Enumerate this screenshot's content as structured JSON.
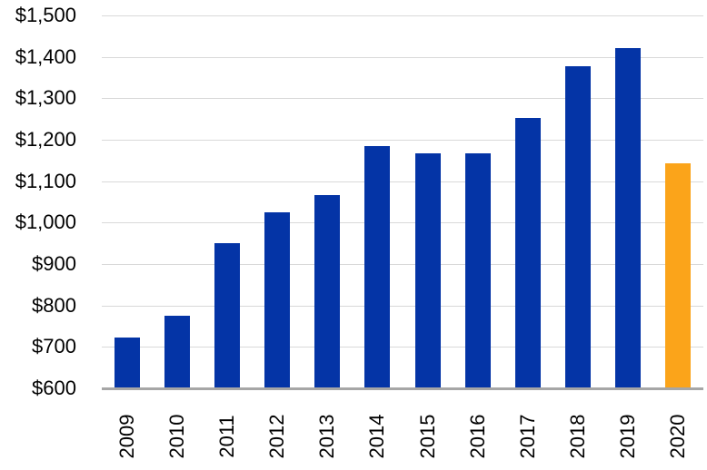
{
  "chart_data": {
    "type": "bar",
    "title": "",
    "xlabel": "",
    "ylabel": "",
    "legend": "none",
    "grid": "horizontal",
    "categories": [
      "2009",
      "2010",
      "2011",
      "2012",
      "2013",
      "2014",
      "2015",
      "2016",
      "2017",
      "2018",
      "2019",
      "2020"
    ],
    "values": [
      722,
      776,
      951,
      1025,
      1067,
      1184,
      1167,
      1167,
      1253,
      1377,
      1422,
      1143
    ],
    "ylim": [
      600,
      1500
    ],
    "ytick_step": 100,
    "ytick_labels": [
      "$600",
      "$700",
      "$800",
      "$900",
      "$1,000",
      "$1,100",
      "$1,200",
      "$1,300",
      "$1,400",
      "$1,500"
    ],
    "bar_color": "#0434A6",
    "highlight_index": 11,
    "highlight_color": "#FBA41A",
    "colors": {
      "gridline": "#D9D9D9",
      "axis_line": "#A6A6A6",
      "text": "#000000",
      "background": "#FFFFFF"
    }
  }
}
